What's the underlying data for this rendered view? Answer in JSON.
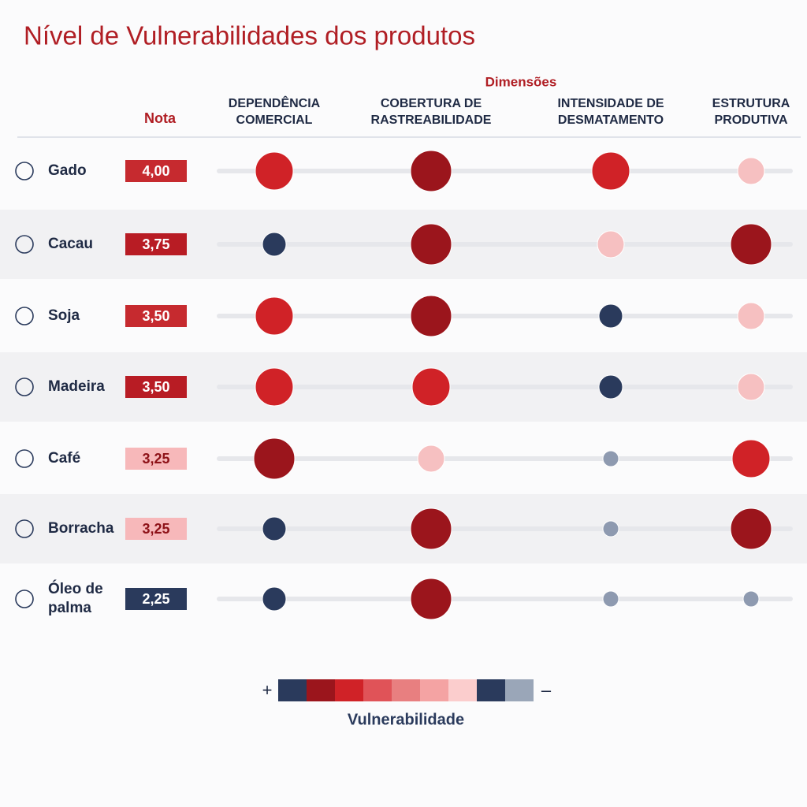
{
  "title": "Nível de Vulnerabilidades dos produtos",
  "header": {
    "group": "Dimensões",
    "score": "Nota",
    "dimensions": [
      [
        "DEPENDÊNCIA",
        "COMERCIAL"
      ],
      [
        "COBERTURA DE",
        "RASTREABILIDADE"
      ],
      [
        "INTENSIDADE DE",
        "DESMATAMENTO"
      ],
      [
        "ESTRUTURA",
        "PRODUTIVA"
      ]
    ]
  },
  "rows": [
    {
      "name": [
        "Gado"
      ],
      "score": "4,00",
      "score_color": "#c62a2f",
      "dots": [
        "#d02227",
        "#9b151c",
        "#d02227",
        "#f6c0c1"
      ]
    },
    {
      "name": [
        "Cacau"
      ],
      "score": "3,75",
      "score_color": "#b81c24",
      "dots": [
        "#2a3a5c",
        "#9b151c",
        "#f6c0c1",
        "#9b151c"
      ]
    },
    {
      "name": [
        "Soja"
      ],
      "score": "3,50",
      "score_color": "#c62a2f",
      "dots": [
        "#d02227",
        "#9b151c",
        "#2a3a5c",
        "#f6c0c1"
      ]
    },
    {
      "name": [
        "Madeira"
      ],
      "score": "3,50",
      "score_color": "#b81c24",
      "dots": [
        "#d02227",
        "#d02227",
        "#2a3a5c",
        "#f6c0c1"
      ]
    },
    {
      "name": [
        "Café"
      ],
      "score": "3,25",
      "score_color": "#f7b8ba",
      "dots": [
        "#9b151c",
        "#f6c0c1",
        "#8e9ab0",
        "#d02227"
      ]
    },
    {
      "name": [
        "Borracha"
      ],
      "score": "3,25",
      "score_color": "#f7b8ba",
      "dots": [
        "#2a3a5c",
        "#9b151c",
        "#8e9ab0",
        "#9b151c"
      ]
    },
    {
      "name": [
        "Óleo de",
        "palma"
      ],
      "score": "2,25",
      "score_color": "#2a3a5c",
      "dots": [
        "#2a3a5c",
        "#9b151c",
        "#8e9ab0",
        "#8e9ab0"
      ]
    }
  ],
  "legend": {
    "plus": "+",
    "minus": "–",
    "label": "Vulnerabilidade",
    "colors": [
      "#2a3a5c",
      "#9b151c",
      "#d02227",
      "#e05358",
      "#e87f80",
      "#f4a3a3",
      "#fbcdcd",
      "#2a3a5c",
      "#9aa6b8"
    ]
  }
}
